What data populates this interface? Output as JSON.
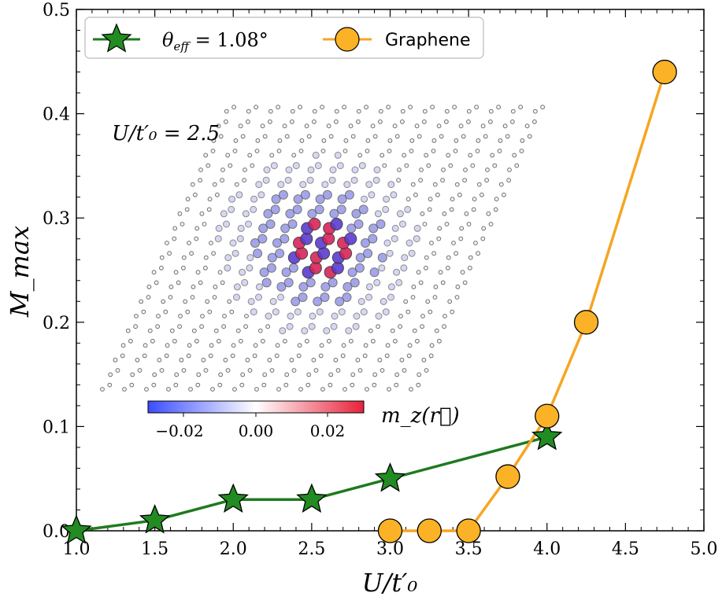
{
  "chart_data": {
    "type": "line",
    "xlabel": "U/t′₀",
    "ylabel": "M_max",
    "xlim": [
      1.0,
      5.0
    ],
    "ylim": [
      0.0,
      0.5
    ],
    "xticks": [
      "1.0",
      "1.5",
      "2.0",
      "2.5",
      "3.0",
      "3.5",
      "4.0",
      "4.5",
      "5.0"
    ],
    "yticks": [
      "0.0",
      "0.1",
      "0.2",
      "0.3",
      "0.4",
      "0.5"
    ],
    "legend_position": "top-left",
    "series": [
      {
        "name": "θ_eff = 1.08°",
        "name_main": "θ",
        "name_sub": "eff",
        "name_rest": " = 1.08°",
        "color": "#1f7a1f",
        "fill": "#228b22",
        "marker": "star",
        "x": [
          1.0,
          1.5,
          2.0,
          2.5,
          3.0,
          4.0
        ],
        "y": [
          0.0,
          0.01,
          0.03,
          0.03,
          0.05,
          0.09
        ]
      },
      {
        "name": "Graphene",
        "color": "#f5a623",
        "fill": "#fbb226",
        "marker": "circle",
        "x": [
          3.0,
          3.25,
          3.5,
          3.75,
          4.0,
          4.25,
          4.75
        ],
        "y": [
          0.0,
          0.0,
          0.0,
          0.052,
          0.11,
          0.2,
          0.44
        ]
      }
    ],
    "inset": {
      "label": "U/t′₀ = 2.5",
      "colorbar_label": "m_z(r⃗)",
      "colorbar_ticks": [
        "−0.02",
        "0.00",
        "0.02"
      ],
      "colorbar_min": -0.03,
      "colorbar_max": 0.03,
      "colormap_low": "#3b4cff",
      "colormap_mid": "#ffffff",
      "colormap_high": "#e8223a"
    }
  }
}
